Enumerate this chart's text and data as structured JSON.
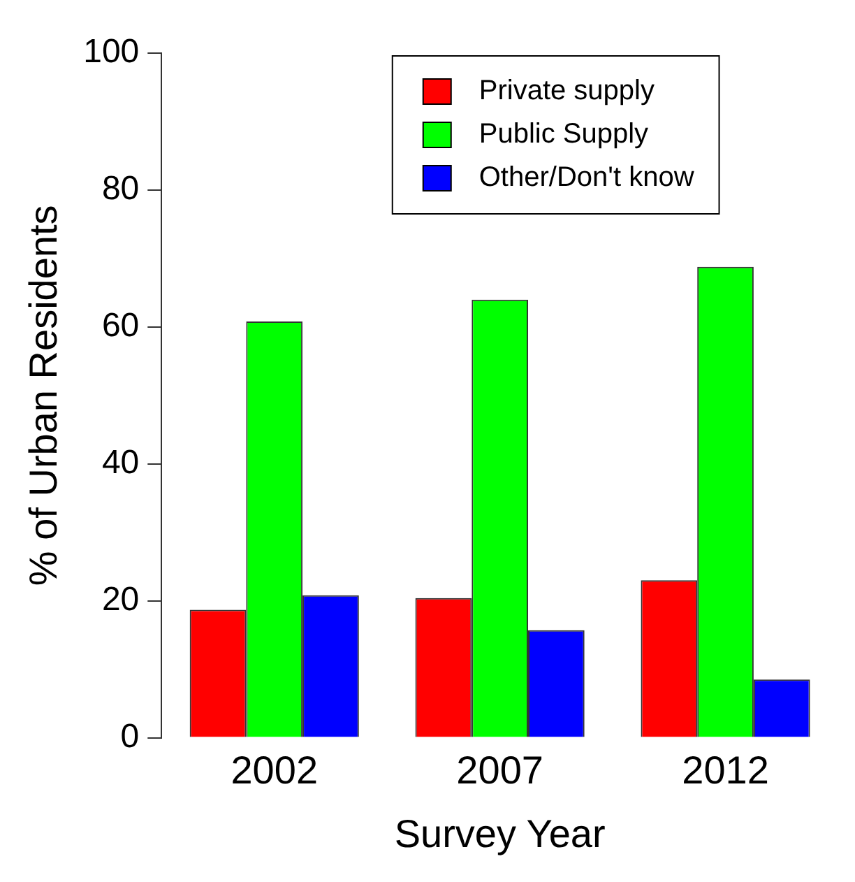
{
  "chart_data": {
    "type": "bar",
    "xlabel": "Survey Year",
    "ylabel": "% of Urban Residents",
    "categories": [
      "2002",
      "2007",
      "2012"
    ],
    "series": [
      {
        "name": "Private supply",
        "color": "#ff0000",
        "values": [
          18.7,
          20.4,
          23.0
        ]
      },
      {
        "name": "Public Supply",
        "color": "#00ff00",
        "values": [
          60.8,
          64.0,
          68.8
        ]
      },
      {
        "name": "Other/Don't know",
        "color": "#0000ff",
        "values": [
          20.8,
          15.7,
          8.5
        ]
      }
    ],
    "ylim": [
      0,
      100
    ],
    "yticks": [
      0,
      20,
      40,
      60,
      80,
      100
    ],
    "legend": "top",
    "grid": false
  }
}
